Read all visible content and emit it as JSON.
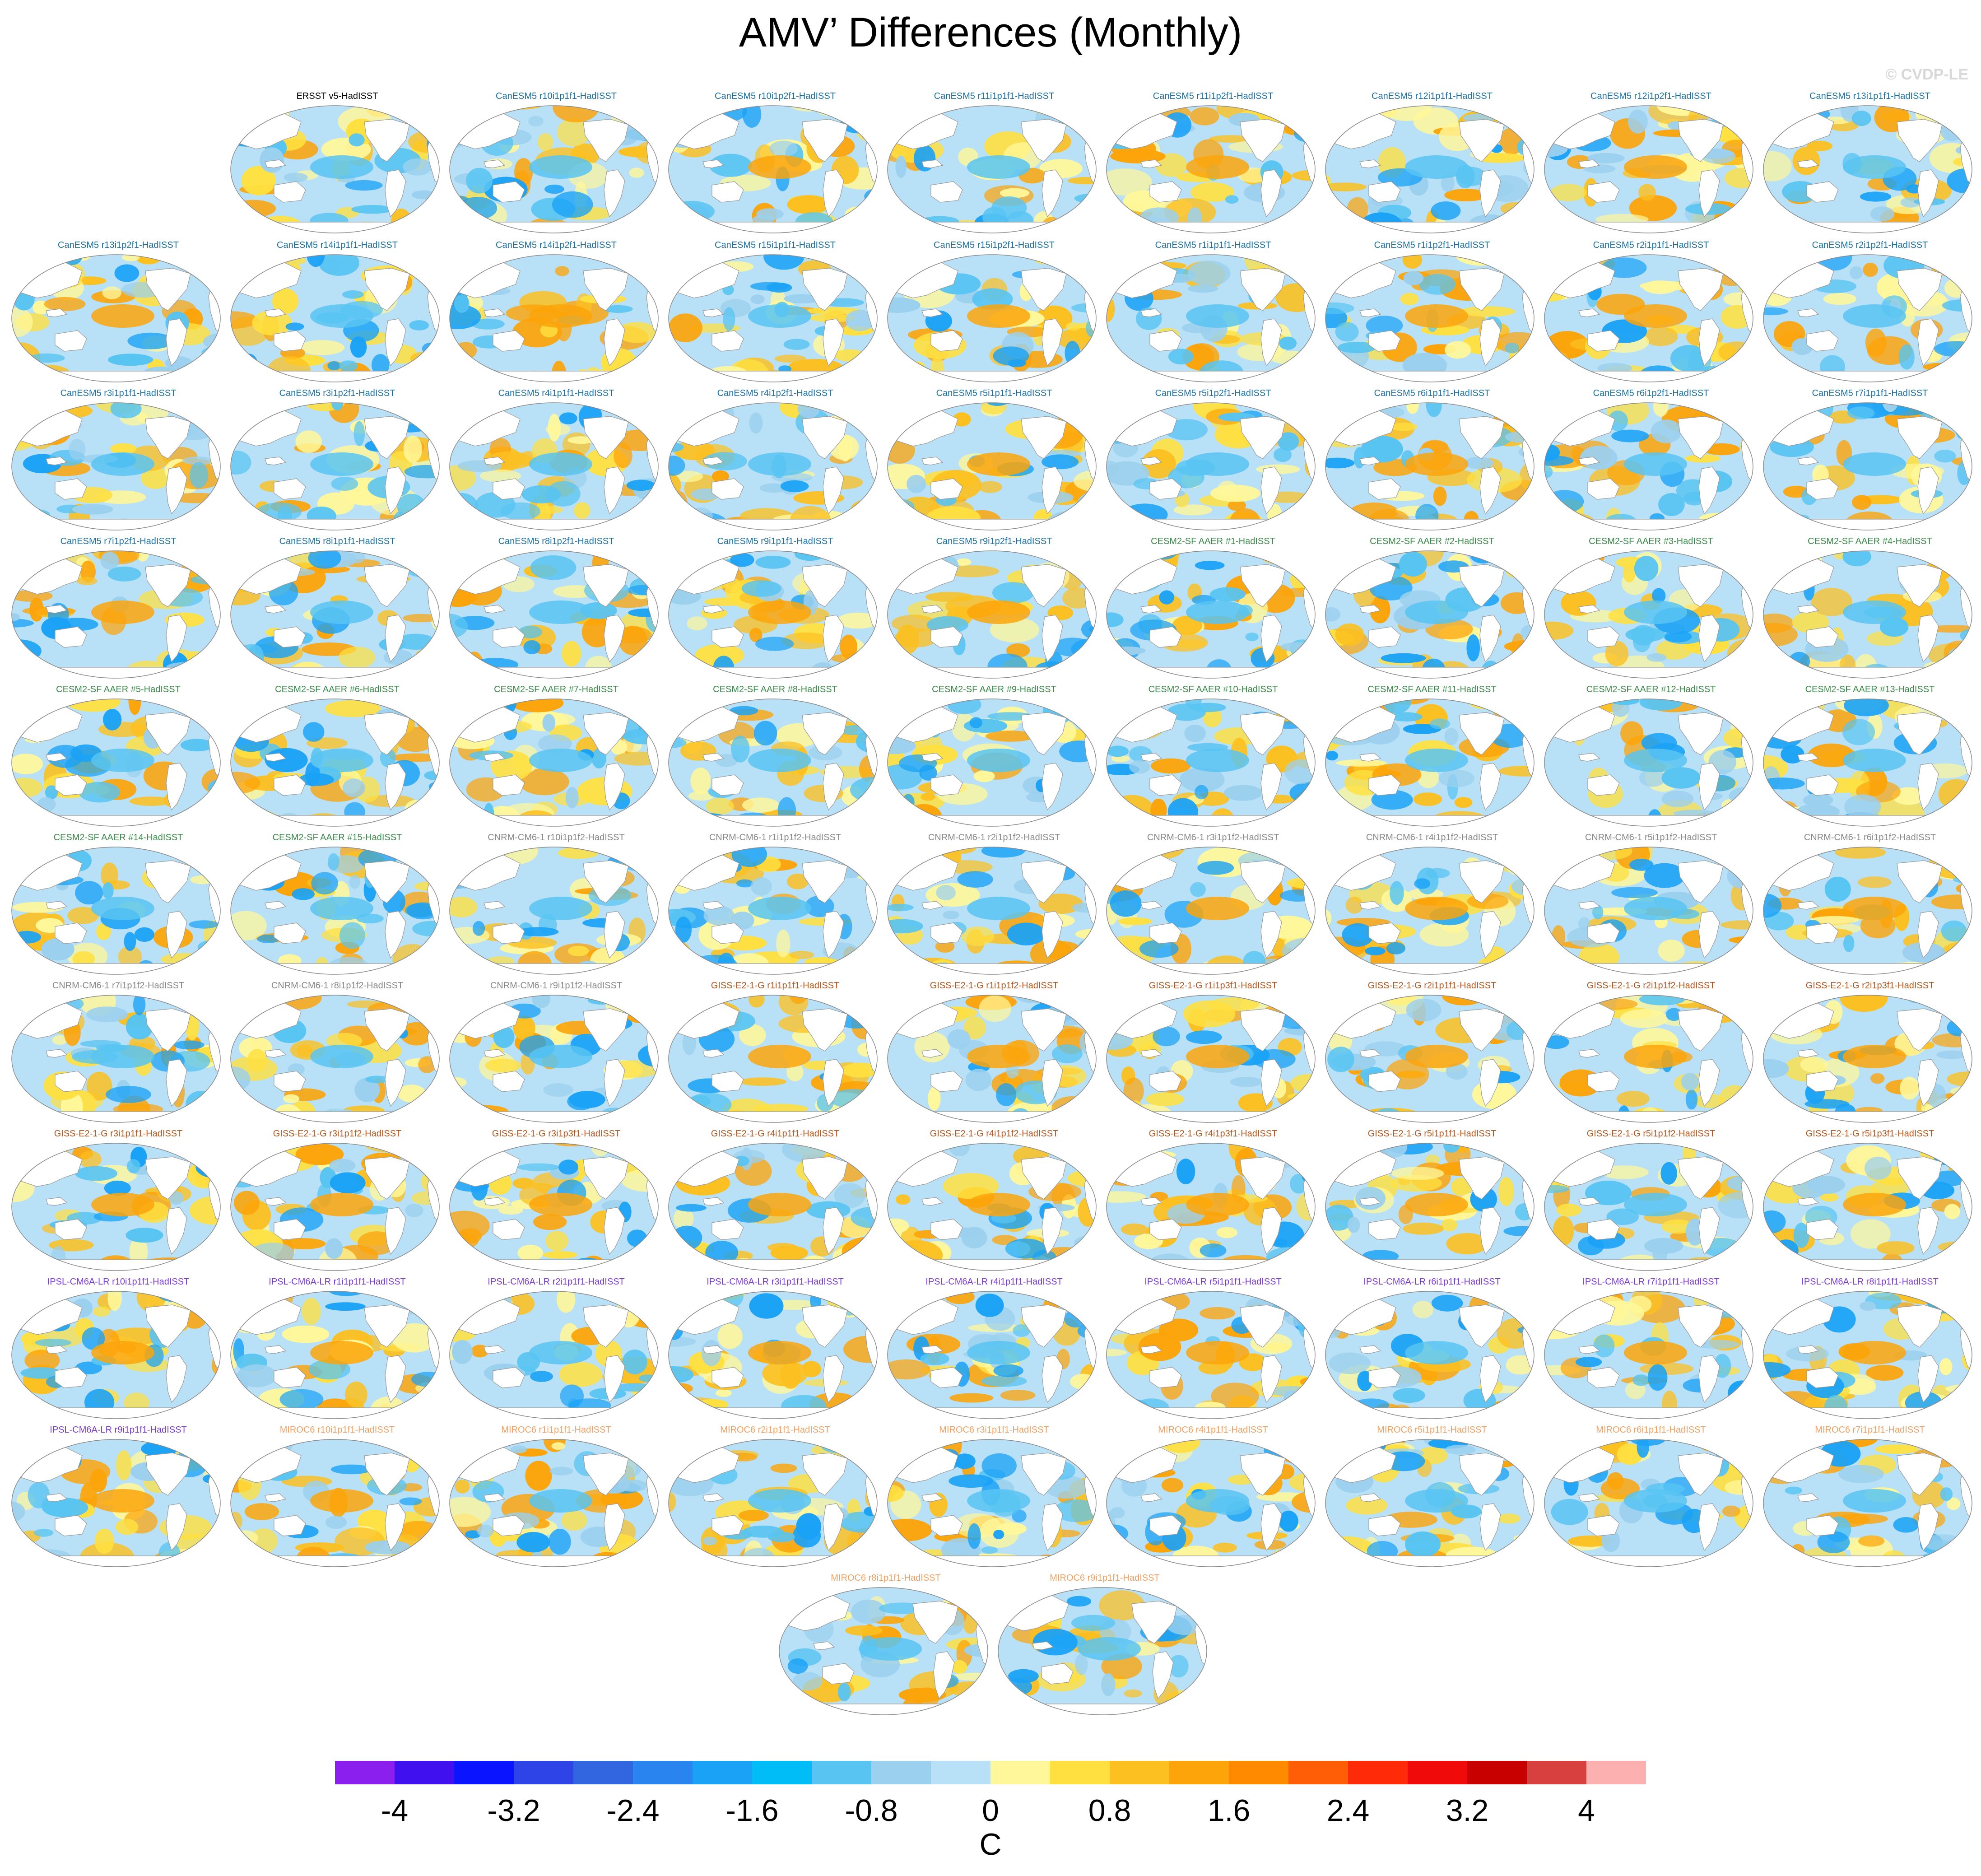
{
  "title": "AMV’ Differences (Monthly)",
  "credit": "© CVDP-LE",
  "units": "C",
  "legend": {
    "colors": [
      "#8a1fee",
      "#4010ee",
      "#0a14ff",
      "#2e44e6",
      "#3266e0",
      "#2a84f0",
      "#1aa2f6",
      "#00bdf8",
      "#58c4f2",
      "#9bd0ee",
      "#b8e0f6",
      "#fff79a",
      "#ffe040",
      "#fcc020",
      "#fca40a",
      "#ff8a00",
      "#ff5e06",
      "#ff2a08",
      "#f00a0a",
      "#c80000",
      "#d84040",
      "#fcb0b0"
    ],
    "tick_labels": [
      "-4",
      "-3.2",
      "-2.4",
      "-1.6",
      "-0.8",
      "0",
      "0.8",
      "1.6",
      "2.4",
      "3.2",
      "4"
    ]
  },
  "group_colors": {
    "obs": "#000000",
    "CanESM5": "#1a6fa0",
    "CESM2-SF": "#3a8a4a",
    "CNRM-CM6-1": "#888888",
    "GISS-E2-1-G": "#b4561c",
    "IPSL-CM6A-LR": "#7a3ad8",
    "MIROC6": "#f0a060"
  },
  "panels": [
    {
      "label": "ERSST v5-HadISST",
      "group": "obs",
      "fill": 0.5
    },
    {
      "label": "CanESM5 r10i1p1f1-HadISST",
      "group": "CanESM5",
      "fill": 0.4
    },
    {
      "label": "CanESM5 r10i1p2f1-HadISST",
      "group": "CanESM5",
      "fill": 0.6
    },
    {
      "label": "CanESM5 r11i1p1f1-HadISST",
      "group": "CanESM5",
      "fill": 0.5
    },
    {
      "label": "CanESM5 r11i1p2f1-HadISST",
      "group": "CanESM5",
      "fill": 0.6
    },
    {
      "label": "CanESM5 r12i1p1f1-HadISST",
      "group": "CanESM5",
      "fill": 0.4
    },
    {
      "label": "CanESM5 r12i1p2f1-HadISST",
      "group": "CanESM5",
      "fill": 0.7
    },
    {
      "label": "CanESM5 r13i1p1f1-HadISST",
      "group": "CanESM5",
      "fill": 0.5
    },
    {
      "label": "CanESM5 r13i1p2f1-HadISST",
      "group": "CanESM5",
      "fill": 0.6
    },
    {
      "label": "CanESM5 r14i1p1f1-HadISST",
      "group": "CanESM5",
      "fill": 0.5
    },
    {
      "label": "CanESM5 r14i1p2f1-HadISST",
      "group": "CanESM5",
      "fill": 0.6
    },
    {
      "label": "CanESM5 r15i1p1f1-HadISST",
      "group": "CanESM5",
      "fill": 0.5
    },
    {
      "label": "CanESM5 r15i1p2f1-HadISST",
      "group": "CanESM5",
      "fill": 0.6
    },
    {
      "label": "CanESM5 r1i1p1f1-HadISST",
      "group": "CanESM5",
      "fill": 0.5
    },
    {
      "label": "CanESM5 r1i1p2f1-HadISST",
      "group": "CanESM5",
      "fill": 0.6
    },
    {
      "label": "CanESM5 r2i1p1f1-HadISST",
      "group": "CanESM5",
      "fill": 0.6
    },
    {
      "label": "CanESM5 r2i1p2f1-HadISST",
      "group": "CanESM5",
      "fill": 0.5
    },
    {
      "label": "CanESM5 r3i1p1f1-HadISST",
      "group": "CanESM5",
      "fill": 0.5
    },
    {
      "label": "CanESM5 r3i1p2f1-HadISST",
      "group": "CanESM5",
      "fill": 0.4
    },
    {
      "label": "CanESM5 r4i1p1f1-HadISST",
      "group": "CanESM5",
      "fill": 0.5
    },
    {
      "label": "CanESM5 r4i1p2f1-HadISST",
      "group": "CanESM5",
      "fill": 0.5
    },
    {
      "label": "CanESM5 r5i1p1f1-HadISST",
      "group": "CanESM5",
      "fill": 0.6
    },
    {
      "label": "CanESM5 r5i1p2f1-HadISST",
      "group": "CanESM5",
      "fill": 0.4
    },
    {
      "label": "CanESM5 r6i1p1f1-HadISST",
      "group": "CanESM5",
      "fill": 0.6
    },
    {
      "label": "CanESM5 r6i1p2f1-HadISST",
      "group": "CanESM5",
      "fill": 0.5
    },
    {
      "label": "CanESM5 r7i1p1f1-HadISST",
      "group": "CanESM5",
      "fill": 0.5
    },
    {
      "label": "CanESM5 r7i1p2f1-HadISST",
      "group": "CanESM5",
      "fill": 0.6
    },
    {
      "label": "CanESM5 r8i1p1f1-HadISST",
      "group": "CanESM5",
      "fill": 0.5
    },
    {
      "label": "CanESM5 r8i1p2f1-HadISST",
      "group": "CanESM5",
      "fill": 0.5
    },
    {
      "label": "CanESM5 r9i1p1f1-HadISST",
      "group": "CanESM5",
      "fill": 0.6
    },
    {
      "label": "CanESM5 r9i1p2f1-HadISST",
      "group": "CanESM5",
      "fill": 0.6
    },
    {
      "label": "CESM2-SF AAER #1-HadISST",
      "group": "CESM2-SF",
      "fill": 0.4
    },
    {
      "label": "CESM2-SF AAER #2-HadISST",
      "group": "CESM2-SF",
      "fill": 0.4
    },
    {
      "label": "CESM2-SF AAER #3-HadISST",
      "group": "CESM2-SF",
      "fill": 0.4
    },
    {
      "label": "CESM2-SF AAER #4-HadISST",
      "group": "CESM2-SF",
      "fill": 0.5
    },
    {
      "label": "CESM2-SF AAER #5-HadISST",
      "group": "CESM2-SF",
      "fill": 0.5
    },
    {
      "label": "CESM2-SF AAER #6-HadISST",
      "group": "CESM2-SF",
      "fill": 0.4
    },
    {
      "label": "CESM2-SF AAER #7-HadISST",
      "group": "CESM2-SF",
      "fill": 0.5
    },
    {
      "label": "CESM2-SF AAER #8-HadISST",
      "group": "CESM2-SF",
      "fill": 0.5
    },
    {
      "label": "CESM2-SF AAER #9-HadISST",
      "group": "CESM2-SF",
      "fill": 0.5
    },
    {
      "label": "CESM2-SF AAER #10-HadISST",
      "group": "CESM2-SF",
      "fill": 0.4
    },
    {
      "label": "CESM2-SF AAER #11-HadISST",
      "group": "CESM2-SF",
      "fill": 0.5
    },
    {
      "label": "CESM2-SF AAER #12-HadISST",
      "group": "CESM2-SF",
      "fill": 0.4
    },
    {
      "label": "CESM2-SF AAER #13-HadISST",
      "group": "CESM2-SF",
      "fill": 0.5
    },
    {
      "label": "CESM2-SF AAER #14-HadISST",
      "group": "CESM2-SF",
      "fill": 0.5
    },
    {
      "label": "CESM2-SF AAER #15-HadISST",
      "group": "CESM2-SF",
      "fill": 0.4
    },
    {
      "label": "CNRM-CM6-1 r10i1p1f2-HadISST",
      "group": "CNRM-CM6-1",
      "fill": 0.5
    },
    {
      "label": "CNRM-CM6-1 r1i1p1f2-HadISST",
      "group": "CNRM-CM6-1",
      "fill": 0.5
    },
    {
      "label": "CNRM-CM6-1 r2i1p1f2-HadISST",
      "group": "CNRM-CM6-1",
      "fill": 0.5
    },
    {
      "label": "CNRM-CM6-1 r3i1p1f2-HadISST",
      "group": "CNRM-CM6-1",
      "fill": 0.6
    },
    {
      "label": "CNRM-CM6-1 r4i1p1f2-HadISST",
      "group": "CNRM-CM6-1",
      "fill": 0.6
    },
    {
      "label": "CNRM-CM6-1 r5i1p1f2-HadISST",
      "group": "CNRM-CM6-1",
      "fill": 0.5
    },
    {
      "label": "CNRM-CM6-1 r6i1p1f2-HadISST",
      "group": "CNRM-CM6-1",
      "fill": 0.6
    },
    {
      "label": "CNRM-CM6-1 r7i1p1f2-HadISST",
      "group": "CNRM-CM6-1",
      "fill": 0.5
    },
    {
      "label": "CNRM-CM6-1 r8i1p1f2-HadISST",
      "group": "CNRM-CM6-1",
      "fill": 0.5
    },
    {
      "label": "CNRM-CM6-1 r9i1p1f2-HadISST",
      "group": "CNRM-CM6-1",
      "fill": 0.5
    },
    {
      "label": "GISS-E2-1-G r1i1p1f1-HadISST",
      "group": "GISS-E2-1-G",
      "fill": 0.6
    },
    {
      "label": "GISS-E2-1-G r1i1p1f2-HadISST",
      "group": "GISS-E2-1-G",
      "fill": 0.6
    },
    {
      "label": "GISS-E2-1-G r1i1p3f1-HadISST",
      "group": "GISS-E2-1-G",
      "fill": 0.7
    },
    {
      "label": "GISS-E2-1-G r2i1p1f1-HadISST",
      "group": "GISS-E2-1-G",
      "fill": 0.6
    },
    {
      "label": "GISS-E2-1-G r2i1p1f2-HadISST",
      "group": "GISS-E2-1-G",
      "fill": 0.6
    },
    {
      "label": "GISS-E2-1-G r2i1p3f1-HadISST",
      "group": "GISS-E2-1-G",
      "fill": 0.7
    },
    {
      "label": "GISS-E2-1-G r3i1p1f1-HadISST",
      "group": "GISS-E2-1-G",
      "fill": 0.6
    },
    {
      "label": "GISS-E2-1-G r3i1p1f2-HadISST",
      "group": "GISS-E2-1-G",
      "fill": 0.6
    },
    {
      "label": "GISS-E2-1-G r3i1p3f1-HadISST",
      "group": "GISS-E2-1-G",
      "fill": 0.7
    },
    {
      "label": "GISS-E2-1-G r4i1p1f1-HadISST",
      "group": "GISS-E2-1-G",
      "fill": 0.6
    },
    {
      "label": "GISS-E2-1-G r4i1p1f2-HadISST",
      "group": "GISS-E2-1-G",
      "fill": 0.6
    },
    {
      "label": "GISS-E2-1-G r4i1p3f1-HadISST",
      "group": "GISS-E2-1-G",
      "fill": 0.6
    },
    {
      "label": "GISS-E2-1-G r5i1p1f1-HadISST",
      "group": "GISS-E2-1-G",
      "fill": 0.6
    },
    {
      "label": "GISS-E2-1-G r5i1p1f2-HadISST",
      "group": "GISS-E2-1-G",
      "fill": 0.5
    },
    {
      "label": "GISS-E2-1-G r5i1p3f1-HadISST",
      "group": "GISS-E2-1-G",
      "fill": 0.7
    },
    {
      "label": "IPSL-CM6A-LR r10i1p1f1-HadISST",
      "group": "IPSL-CM6A-LR",
      "fill": 0.6
    },
    {
      "label": "IPSL-CM6A-LR r1i1p1f1-HadISST",
      "group": "IPSL-CM6A-LR",
      "fill": 0.6
    },
    {
      "label": "IPSL-CM6A-LR r2i1p1f1-HadISST",
      "group": "IPSL-CM6A-LR",
      "fill": 0.5
    },
    {
      "label": "IPSL-CM6A-LR r3i1p1f1-HadISST",
      "group": "IPSL-CM6A-LR",
      "fill": 0.6
    },
    {
      "label": "IPSL-CM6A-LR r4i1p1f1-HadISST",
      "group": "IPSL-CM6A-LR",
      "fill": 0.5
    },
    {
      "label": "IPSL-CM6A-LR r5i1p1f1-HadISST",
      "group": "IPSL-CM6A-LR",
      "fill": 0.6
    },
    {
      "label": "IPSL-CM6A-LR r6i1p1f1-HadISST",
      "group": "IPSL-CM6A-LR",
      "fill": 0.5
    },
    {
      "label": "IPSL-CM6A-LR r7i1p1f1-HadISST",
      "group": "IPSL-CM6A-LR",
      "fill": 0.6
    },
    {
      "label": "IPSL-CM6A-LR r8i1p1f1-HadISST",
      "group": "IPSL-CM6A-LR",
      "fill": 0.7
    },
    {
      "label": "IPSL-CM6A-LR r9i1p1f1-HadISST",
      "group": "IPSL-CM6A-LR",
      "fill": 0.6
    },
    {
      "label": "MIROC6 r10i1p1f1-HadISST",
      "group": "MIROC6",
      "fill": 0.6
    },
    {
      "label": "MIROC6 r1i1p1f1-HadISST",
      "group": "MIROC6",
      "fill": 0.5
    },
    {
      "label": "MIROC6 r2i1p1f1-HadISST",
      "group": "MIROC6",
      "fill": 0.5
    },
    {
      "label": "MIROC6 r3i1p1f1-HadISST",
      "group": "MIROC6",
      "fill": 0.5
    },
    {
      "label": "MIROC6 r4i1p1f1-HadISST",
      "group": "MIROC6",
      "fill": 0.5
    },
    {
      "label": "MIROC6 r5i1p1f1-HadISST",
      "group": "MIROC6",
      "fill": 0.5
    },
    {
      "label": "MIROC6 r6i1p1f1-HadISST",
      "group": "MIROC6",
      "fill": 0.4
    },
    {
      "label": "MIROC6 r7i1p1f1-HadISST",
      "group": "MIROC6",
      "fill": 0.5
    },
    {
      "label": "MIROC6 r8i1p1f1-HadISST",
      "group": "MIROC6",
      "fill": 0.5
    },
    {
      "label": "MIROC6 r9i1p1f1-HadISST",
      "group": "MIROC6",
      "fill": 0.4
    }
  ]
}
